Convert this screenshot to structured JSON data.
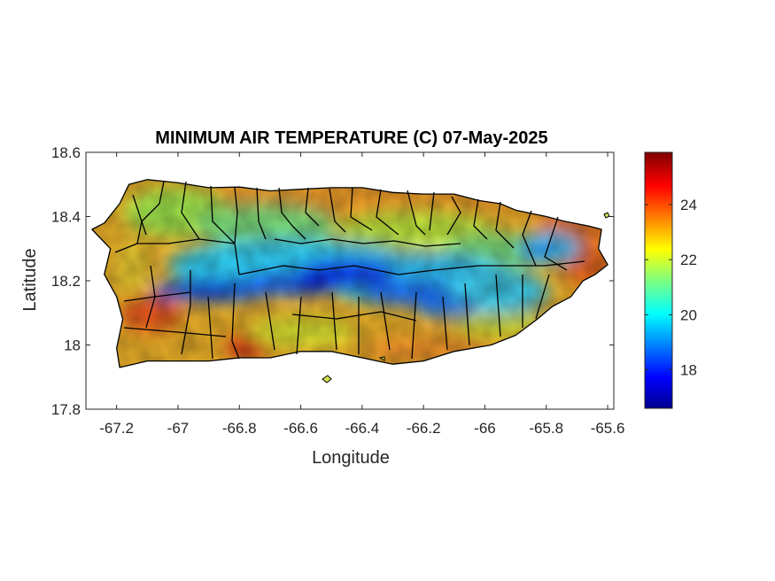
{
  "chart_data": {
    "type": "heatmap",
    "title": "MINIMUM AIR TEMPERATURE (C) 07-May-2025",
    "xlabel": "Longitude",
    "ylabel": "Latitude",
    "xlim": [
      -67.3,
      -65.58
    ],
    "ylim": [
      17.8,
      18.6
    ],
    "xticks": [
      -67.2,
      -67,
      -66.8,
      -66.6,
      -66.4,
      -66.2,
      -66,
      -65.8,
      -65.6
    ],
    "yticks": [
      17.8,
      18,
      18.2,
      18.4,
      18.6
    ],
    "xtick_labels": [
      "-67.2",
      "-67",
      "-66.8",
      "-66.6",
      "-66.4",
      "-66.2",
      "-66",
      "-65.8",
      "-65.6"
    ],
    "ytick_labels": [
      "17.8",
      "18",
      "18.2",
      "18.4",
      "18.6"
    ],
    "colorbar": {
      "range": [
        16.6,
        25.9
      ],
      "ticks": [
        18,
        20,
        22,
        24
      ],
      "tick_labels": [
        "18",
        "20",
        "22",
        "24"
      ],
      "colormap": "jet"
    },
    "grid": false
  }
}
